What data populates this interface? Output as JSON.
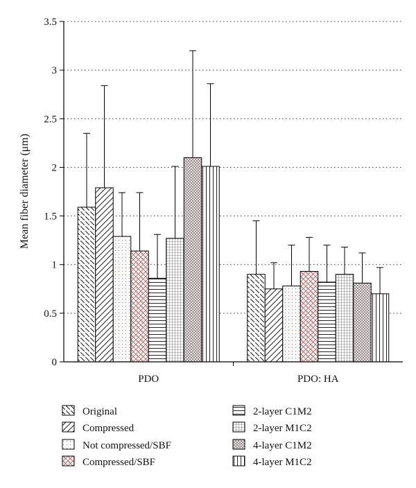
{
  "chart_data": {
    "type": "bar",
    "title": "",
    "xlabel": "",
    "ylabel": "Mean fiber diameter (μm)",
    "ylim": [
      0,
      3.5
    ],
    "yticks": [
      "0",
      "0.5",
      "1",
      "1.5",
      "2",
      "2.5",
      "3",
      "3.5"
    ],
    "grid": "horizontal dotted",
    "legend_position": "bottom",
    "categories": [
      "PDO",
      "PDO: HA"
    ],
    "series": [
      {
        "name": "Original",
        "pattern": "diag-back",
        "values": [
          1.59,
          0.9
        ],
        "errors": [
          0.76,
          0.55
        ]
      },
      {
        "name": "Compressed",
        "pattern": "diag-fwd",
        "values": [
          1.79,
          0.75
        ],
        "errors": [
          1.05,
          0.27
        ]
      },
      {
        "name": "Not compressed/SBF",
        "pattern": "dots",
        "values": [
          1.29,
          0.78
        ],
        "errors": [
          0.45,
          0.42
        ]
      },
      {
        "name": "Compressed/SBF",
        "pattern": "cross",
        "values": [
          1.14,
          0.93
        ],
        "errors": [
          0.6,
          0.35
        ]
      },
      {
        "name": "2-layer C1M2",
        "pattern": "horizontal",
        "values": [
          0.86,
          0.82
        ],
        "errors": [
          0.45,
          0.38
        ]
      },
      {
        "name": "2-layer M1C2",
        "pattern": "fine-grid",
        "values": [
          1.27,
          0.9
        ],
        "errors": [
          0.74,
          0.28
        ]
      },
      {
        "name": "4-layer C1M2",
        "pattern": "dense-cross",
        "values": [
          2.1,
          0.81
        ],
        "errors": [
          1.1,
          0.31
        ]
      },
      {
        "name": "4-layer M1C2",
        "pattern": "vertical",
        "values": [
          2.01,
          0.7
        ],
        "errors": [
          0.85,
          0.27
        ]
      }
    ]
  }
}
